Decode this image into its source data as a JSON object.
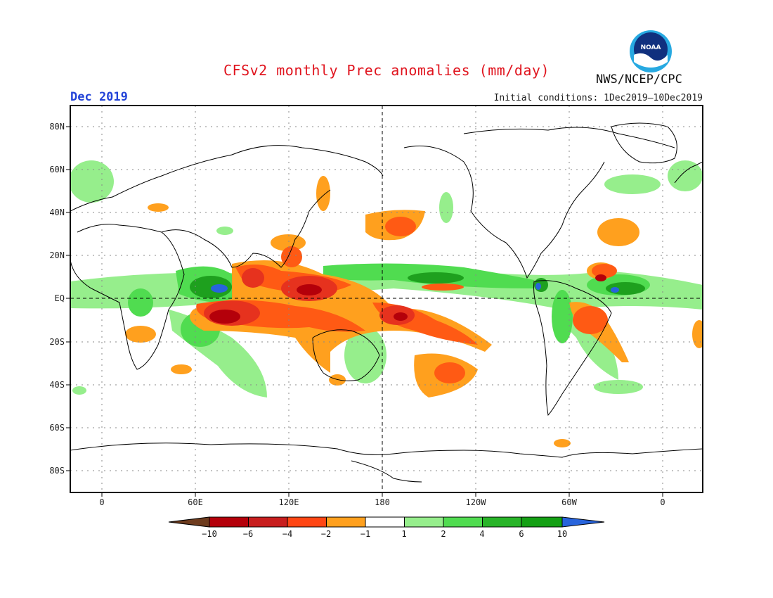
{
  "header": {
    "title": "CFSv2 monthly Prec anomalies (mm/day)",
    "month": "Dec 2019",
    "initial_conditions": "Initial conditions: 1Dec2019—10Dec2019",
    "org": "NWS/NCEP/CPC",
    "logo_text": "NOAA"
  },
  "axes": {
    "lat_labels": [
      "80N",
      "60N",
      "40N",
      "20N",
      "EQ",
      "20S",
      "40S",
      "60S",
      "80S"
    ],
    "lon_labels": [
      "0",
      "60E",
      "120E",
      "180",
      "120W",
      "60W",
      "0"
    ]
  },
  "colorbar": {
    "labels": [
      "−10",
      "−6",
      "−4",
      "−2",
      "−1",
      "1",
      "2",
      "4",
      "6",
      "10"
    ],
    "colors": [
      "#6e3c1e",
      "#b4000a",
      "#c81e1e",
      "#ff4614",
      "#ffa01e",
      "#ffffff",
      "#96ee8c",
      "#50dc50",
      "#28b428",
      "#14a014",
      "#2864dc"
    ]
  },
  "map_colors": {
    "dark_red": "#b4000a",
    "red": "#e6321e",
    "orange_red": "#ff5a14",
    "orange": "#ffa01e",
    "light_green": "#96ee8c",
    "green": "#50dc50",
    "dark_green": "#1ea01e",
    "blue": "#2864dc"
  }
}
